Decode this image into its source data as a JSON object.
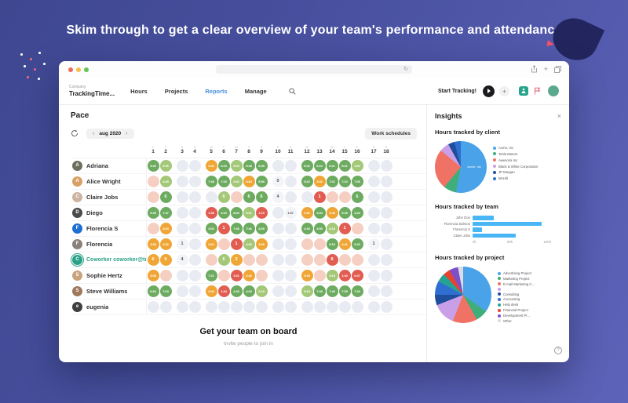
{
  "hero": {
    "title": "Skim through to get a clear overview of your team's performance and attendance"
  },
  "nav": {
    "company_label": "Company",
    "company_name": "TrackingTime...",
    "items": [
      "Hours",
      "Projects",
      "Reports",
      "Manage"
    ],
    "active_item": "Reports",
    "start_tracking_label": "Start Tracking!"
  },
  "icons": {
    "plus": "+",
    "reload": "↻",
    "prev_chevron": "‹",
    "next_chevron": "›",
    "close": "×",
    "help": "?"
  },
  "pace": {
    "title": "Pace",
    "month": "aug 2020",
    "work_schedules_label": "Work schedules"
  },
  "grid": {
    "weekend_days": [
      3,
      4,
      10,
      11,
      17,
      18
    ],
    "group_starts": [
      3,
      5,
      10,
      12,
      17
    ],
    "days": [
      {
        "n": 1,
        "w": "T"
      },
      {
        "n": 2,
        "w": "F"
      },
      {
        "n": 3,
        "w": "S"
      },
      {
        "n": 4,
        "w": "S"
      },
      {
        "n": 5,
        "w": "M"
      },
      {
        "n": 6,
        "w": "T"
      },
      {
        "n": 7,
        "w": "W"
      },
      {
        "n": 8,
        "w": "T"
      },
      {
        "n": 9,
        "w": "F"
      },
      {
        "n": 10,
        "w": "S"
      },
      {
        "n": 11,
        "w": "S"
      },
      {
        "n": 12,
        "w": "M"
      },
      {
        "n": 13,
        "w": "T"
      },
      {
        "n": 14,
        "w": "W"
      },
      {
        "n": 15,
        "w": "T"
      },
      {
        "n": 16,
        "w": "F"
      },
      {
        "n": 17,
        "w": "S"
      },
      {
        "n": 18,
        "w": "S"
      }
    ],
    "rows": [
      {
        "name": "Adriana",
        "initial": "A",
        "avatar_color": "#6b705c",
        "link": false,
        "cells": [
          {
            "v": "5:40",
            "s": "g"
          },
          {
            "v": "6:36",
            "s": "lg"
          },
          {
            "v": "",
            "s": "e"
          },
          {
            "v": "",
            "s": "e"
          },
          {
            "v": "3:40",
            "s": "o"
          },
          {
            "v": "6:23",
            "s": "g"
          },
          {
            "v": "6:02",
            "s": "lg"
          },
          {
            "v": "5:48",
            "s": "g"
          },
          {
            "v": "6:05",
            "s": "g"
          },
          {
            "v": "",
            "s": "e"
          },
          {
            "v": "",
            "s": "e"
          },
          {
            "v": "5:42",
            "s": "g"
          },
          {
            "v": "6:24",
            "s": "g"
          },
          {
            "v": "6:21",
            "s": "g"
          },
          {
            "v": "5:41",
            "s": "g"
          },
          {
            "v": "4:52",
            "s": "lg"
          },
          {
            "v": "",
            "s": "e"
          },
          {
            "v": "",
            "s": "e"
          }
        ]
      },
      {
        "name": "Alice Wright",
        "initial": "A",
        "avatar_color": "#d9a066",
        "link": false,
        "cells": [
          {
            "v": "",
            "s": "p"
          },
          {
            "v": "4:45",
            "s": "lg"
          },
          {
            "v": "",
            "s": "e"
          },
          {
            "v": "",
            "s": "e"
          },
          {
            "v": "7:48",
            "s": "g"
          },
          {
            "v": "7:15",
            "s": "g"
          },
          {
            "v": "4:52",
            "s": "lg"
          },
          {
            "v": "3:04",
            "s": "o"
          },
          {
            "v": "5:58",
            "s": "g"
          },
          {
            "v": "0",
            "s": "n"
          },
          {
            "v": "",
            "s": "e"
          },
          {
            "v": "5:22",
            "s": "g"
          },
          {
            "v": "3:41",
            "s": "o"
          },
          {
            "v": "7:21",
            "s": "g"
          },
          {
            "v": "7:10",
            "s": "g"
          },
          {
            "v": "7:05",
            "s": "g"
          },
          {
            "v": "",
            "s": "e"
          },
          {
            "v": "",
            "s": "e"
          }
        ]
      },
      {
        "name": "Claire Jobs",
        "initial": "C",
        "avatar_color": "#cdb4a0",
        "link": false,
        "cells": [
          {
            "v": "",
            "s": "p"
          },
          {
            "v": "6",
            "s": "g"
          },
          {
            "v": "",
            "s": "e"
          },
          {
            "v": "",
            "s": "e"
          },
          {
            "v": "",
            "s": "e"
          },
          {
            "v": "6",
            "s": "lg"
          },
          {
            "v": "",
            "s": "p"
          },
          {
            "v": "6",
            "s": "g"
          },
          {
            "v": "6",
            "s": "g"
          },
          {
            "v": "4",
            "s": "n"
          },
          {
            "v": "",
            "s": "e"
          },
          {
            "v": "",
            "s": "e"
          },
          {
            "v": "1",
            "s": "r"
          },
          {
            "v": "",
            "s": "p"
          },
          {
            "v": "",
            "s": "p"
          },
          {
            "v": "6",
            "s": "g"
          },
          {
            "v": "",
            "s": "e"
          },
          {
            "v": "",
            "s": "e"
          }
        ]
      },
      {
        "name": "Diego",
        "initial": "D",
        "avatar_color": "#4a4a4a",
        "link": false,
        "cells": [
          {
            "v": "5:45",
            "s": "g"
          },
          {
            "v": "7:47",
            "s": "g"
          },
          {
            "v": "",
            "s": "e"
          },
          {
            "v": "",
            "s": "e"
          },
          {
            "v": "1:58",
            "s": "r"
          },
          {
            "v": "4:20",
            "s": "g"
          },
          {
            "v": "8:03",
            "s": "g"
          },
          {
            "v": "5:31",
            "s": "lg"
          },
          {
            "v": "1:15",
            "s": "r"
          },
          {
            "v": "",
            "s": "e"
          },
          {
            "v": "1:57",
            "s": "n"
          },
          {
            "v": "2:52",
            "s": "o"
          },
          {
            "v": "4:54",
            "s": "g"
          },
          {
            "v": "3:49",
            "s": "o"
          },
          {
            "v": "5:45",
            "s": "g"
          },
          {
            "v": "4:44",
            "s": "g"
          },
          {
            "v": "",
            "s": "e"
          },
          {
            "v": "",
            "s": "e"
          }
        ]
      },
      {
        "name": "Florencia S",
        "initial": "F",
        "avatar_color": "#1d6fd1",
        "link": false,
        "cells": [
          {
            "v": "",
            "s": "p"
          },
          {
            "v": "3:04",
            "s": "o"
          },
          {
            "v": "",
            "s": "e"
          },
          {
            "v": "",
            "s": "e"
          },
          {
            "v": "4:02",
            "s": "g"
          },
          {
            "v": "1",
            "s": "r"
          },
          {
            "v": "7:46",
            "s": "g"
          },
          {
            "v": "7:46",
            "s": "g"
          },
          {
            "v": "4:35",
            "s": "g"
          },
          {
            "v": "",
            "s": "e"
          },
          {
            "v": "",
            "s": "e"
          },
          {
            "v": "4:40",
            "s": "g"
          },
          {
            "v": "4:55",
            "s": "g"
          },
          {
            "v": "6:18",
            "s": "lg"
          },
          {
            "v": "1",
            "s": "r"
          },
          {
            "v": "",
            "s": "p"
          },
          {
            "v": "",
            "s": "e"
          },
          {
            "v": "",
            "s": "e"
          }
        ]
      },
      {
        "name": "Florencia",
        "initial": "F",
        "avatar_color": "#8a817c",
        "link": false,
        "cells": [
          {
            "v": "3:30",
            "s": "o"
          },
          {
            "v": "3:32",
            "s": "o"
          },
          {
            "v": "1",
            "s": "n"
          },
          {
            "v": "",
            "s": "e"
          },
          {
            "v": "3:04",
            "s": "o"
          },
          {
            "v": "",
            "s": "p"
          },
          {
            "v": "1",
            "s": "r"
          },
          {
            "v": "4:53",
            "s": "lg"
          },
          {
            "v": "3:09",
            "s": "o"
          },
          {
            "v": "",
            "s": "e"
          },
          {
            "v": "",
            "s": "e"
          },
          {
            "v": "",
            "s": "p"
          },
          {
            "v": "",
            "s": "p"
          },
          {
            "v": "5:18",
            "s": "g"
          },
          {
            "v": "3:41",
            "s": "o"
          },
          {
            "v": "6:20",
            "s": "g"
          },
          {
            "v": "1",
            "s": "n"
          },
          {
            "v": "",
            "s": "e"
          }
        ]
      },
      {
        "name": "Coworker coworker@trac...",
        "initial": "C",
        "avatar_color": "#2aa187",
        "link": true,
        "cells": [
          {
            "v": "6",
            "s": "o"
          },
          {
            "v": "6",
            "s": "o"
          },
          {
            "v": "4",
            "s": "n"
          },
          {
            "v": "",
            "s": "e"
          },
          {
            "v": "",
            "s": "p"
          },
          {
            "v": "6",
            "s": "lg"
          },
          {
            "v": "3",
            "s": "o"
          },
          {
            "v": "",
            "s": "p"
          },
          {
            "v": "",
            "s": "p"
          },
          {
            "v": "",
            "s": "e"
          },
          {
            "v": "",
            "s": "e"
          },
          {
            "v": "",
            "s": "p"
          },
          {
            "v": "",
            "s": "p"
          },
          {
            "v": "8",
            "s": "r"
          },
          {
            "v": "",
            "s": "p"
          },
          {
            "v": "",
            "s": "p"
          },
          {
            "v": "",
            "s": "e"
          },
          {
            "v": "",
            "s": "e"
          }
        ]
      },
      {
        "name": "Sophie Hertz",
        "initial": "S",
        "avatar_color": "#c9a27e",
        "link": false,
        "cells": [
          {
            "v": "3:08",
            "s": "o"
          },
          {
            "v": "",
            "s": "p"
          },
          {
            "v": "",
            "s": "e"
          },
          {
            "v": "",
            "s": "e"
          },
          {
            "v": "7:21",
            "s": "g"
          },
          {
            "v": "",
            "s": "p"
          },
          {
            "v": "1:01",
            "s": "r"
          },
          {
            "v": "2:46",
            "s": "o"
          },
          {
            "v": "",
            "s": "p"
          },
          {
            "v": "",
            "s": "e"
          },
          {
            "v": "",
            "s": "e"
          },
          {
            "v": "3:35",
            "s": "o"
          },
          {
            "v": "",
            "s": "p"
          },
          {
            "v": "5:18",
            "s": "lg"
          },
          {
            "v": "1:43",
            "s": "r"
          },
          {
            "v": "0:47",
            "s": "r"
          },
          {
            "v": "",
            "s": "e"
          },
          {
            "v": "",
            "s": "e"
          }
        ]
      },
      {
        "name": "Steve Williams",
        "initial": "S",
        "avatar_color": "#a0785a",
        "link": false,
        "cells": [
          {
            "v": "6:54",
            "s": "g"
          },
          {
            "v": "7:03",
            "s": "g"
          },
          {
            "v": "",
            "s": "e"
          },
          {
            "v": "",
            "s": "e"
          },
          {
            "v": "3:40",
            "s": "o"
          },
          {
            "v": "1:34",
            "s": "r"
          },
          {
            "v": "4:40",
            "s": "g"
          },
          {
            "v": "4:03",
            "s": "g"
          },
          {
            "v": "6:18",
            "s": "lg"
          },
          {
            "v": "",
            "s": "e"
          },
          {
            "v": "",
            "s": "e"
          },
          {
            "v": "5:34",
            "s": "lg"
          },
          {
            "v": "7:48",
            "s": "g"
          },
          {
            "v": "7:40",
            "s": "g"
          },
          {
            "v": "7:05",
            "s": "g"
          },
          {
            "v": "7:20",
            "s": "g"
          },
          {
            "v": "",
            "s": "e"
          },
          {
            "v": "",
            "s": "e"
          }
        ]
      },
      {
        "name": "eugenia",
        "initial": "e",
        "avatar_color": "#3f3f3f",
        "link": false,
        "cells": [
          {
            "v": "",
            "s": "e"
          },
          {
            "v": "",
            "s": "e"
          },
          {
            "v": "",
            "s": "e"
          },
          {
            "v": "",
            "s": "e"
          },
          {
            "v": "",
            "s": "e"
          },
          {
            "v": "",
            "s": "e"
          },
          {
            "v": "",
            "s": "e"
          },
          {
            "v": "",
            "s": "e"
          },
          {
            "v": "",
            "s": "e"
          },
          {
            "v": "",
            "s": "e"
          },
          {
            "v": "",
            "s": "e"
          },
          {
            "v": "",
            "s": "e"
          },
          {
            "v": "",
            "s": "e"
          },
          {
            "v": "",
            "s": "e"
          },
          {
            "v": "",
            "s": "e"
          },
          {
            "v": "",
            "s": "e"
          },
          {
            "v": "",
            "s": "e"
          },
          {
            "v": "",
            "s": "e"
          }
        ]
      }
    ]
  },
  "footer_cta": {
    "title": "Get your team on board",
    "subtitle": "Invite people to join in"
  },
  "insights": {
    "title": "Insights"
  },
  "chart_data": [
    {
      "type": "pie",
      "title": "Hours tracked by client",
      "inner_label": "Acme, Inc",
      "legend_position": "right",
      "slices": [
        {
          "label": "Acme, Inc",
          "value": 53,
          "color": "#4aa3e8"
        },
        {
          "label": "Tesla Motors",
          "value": 8,
          "color": "#3fae7a"
        },
        {
          "label": "Awesomi Inc",
          "value": 25,
          "color": "#f07264"
        },
        {
          "label": "Black & White Corporation",
          "value": 6,
          "color": "#c9a0e8"
        },
        {
          "label": "JP Morgan",
          "value": 4,
          "color": "#1f4e9c"
        },
        {
          "label": "McHill",
          "value": 4,
          "color": "#2f6fd1"
        }
      ]
    },
    {
      "type": "bar",
      "title": "Hours tracked by team",
      "orientation": "horizontal",
      "categories": [
        "John Doe",
        "Florencia Salmon",
        "Florencia S",
        "Claire Jobs"
      ],
      "values": [
        27,
        88,
        12,
        55
      ],
      "xlabel": "hours",
      "xlim": [
        0,
        100
      ],
      "xticks": [
        "0h",
        "50h",
        "100h"
      ],
      "bar_color": "#49b6f5",
      "grid": true
    },
    {
      "type": "pie",
      "title": "Hours tracked by project",
      "legend_position": "right",
      "slices": [
        {
          "label": "Advertising Project",
          "value": 35,
          "color": "#4aa3e8"
        },
        {
          "label": "Marketing Project",
          "value": 7,
          "color": "#3fae7a"
        },
        {
          "label": "E-mail Marketing C...",
          "value": 14,
          "color": "#f07264"
        },
        {
          "label": "",
          "value": 13,
          "color": "#c9a0e8"
        },
        {
          "label": "Consulting",
          "value": 6,
          "color": "#1f4e9c"
        },
        {
          "label": "Accounting",
          "value": 8,
          "color": "#2f6fd1"
        },
        {
          "label": "Help desk",
          "value": 5,
          "color": "#27a394"
        },
        {
          "label": "Financial Project",
          "value": 4,
          "color": "#e8432e"
        },
        {
          "label": "Development Pr...",
          "value": 5,
          "color": "#7d4fc9"
        },
        {
          "label": "Other",
          "value": 3,
          "color": "#d9dde3"
        }
      ]
    }
  ],
  "colors": {
    "accent_blue": "#4a90d9",
    "link_green": "#2aa187",
    "cell_full": "#6cab60",
    "cell_light": "#a3c878",
    "cell_mid": "#f0a636",
    "cell_low": "#e25c52",
    "cell_missed": "#f6cfc3",
    "cell_off": "#e9ebf3",
    "traffic_red": "#ed6a5e",
    "traffic_yellow": "#f5bf4f",
    "traffic_green": "#61c554"
  }
}
